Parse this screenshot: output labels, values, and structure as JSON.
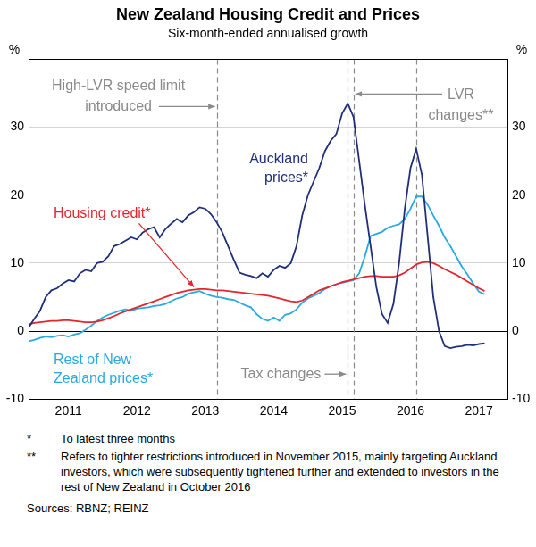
{
  "chart_data": {
    "type": "line",
    "title": "New Zealand Housing Credit and Prices",
    "subtitle": "Six-month-ended annualised growth",
    "ylabel": "%",
    "y2label": "%",
    "categories": [
      null,
      null,
      null,
      null,
      null,
      null,
      null,
      "2011",
      null,
      null,
      null,
      null,
      null,
      null,
      null,
      null,
      null,
      null,
      null,
      "2012",
      null,
      null,
      null,
      null,
      null,
      null,
      null,
      null,
      null,
      null,
      null,
      "2013",
      null,
      null,
      null,
      null,
      null,
      null,
      null,
      null,
      null,
      null,
      null,
      "2014",
      null,
      null,
      null,
      null,
      null,
      null,
      null,
      null,
      null,
      null,
      null,
      "2015",
      null,
      null,
      null,
      null,
      null,
      null,
      null,
      null,
      null,
      null,
      null,
      "2016",
      null,
      null,
      null,
      null,
      null,
      null,
      null,
      null,
      null,
      null,
      null,
      "2017",
      null,
      null,
      null,
      null,
      null
    ],
    "series": [
      {
        "name": "Auckland prices*",
        "color": "#1f2f7a",
        "values": [
          0.5,
          1.8,
          3,
          5,
          6,
          6.3,
          7,
          7.5,
          7.3,
          8.5,
          9,
          8.8,
          10,
          10.2,
          11,
          12.5,
          12.8,
          13.3,
          13.8,
          13.5,
          14.5,
          15,
          15.3,
          13.8,
          15,
          15.8,
          16.5,
          16,
          17,
          17.5,
          18.2,
          18,
          17.2,
          16,
          14.5,
          12.5,
          10.5,
          8.6,
          8.3,
          8.1,
          7.8,
          8.5,
          8,
          9,
          9.6,
          9.3,
          10,
          12.5,
          17,
          20,
          22,
          24,
          26.5,
          28,
          29,
          32,
          33.5,
          31.5,
          25,
          18.5,
          12.5,
          6.5,
          2.5,
          1.2,
          4,
          10,
          18,
          24,
          26.8,
          23,
          14,
          5,
          0,
          -2.2,
          -2.5,
          -2.3,
          -2.2,
          -2,
          -2.1,
          -1.9,
          -1.8,
          null,
          null,
          null,
          null
        ]
      },
      {
        "name": "Housing credit*",
        "color": "#e3262d",
        "values": [
          1.0,
          1.2,
          1.3,
          1.4,
          1.5,
          1.5,
          1.6,
          1.6,
          1.5,
          1.4,
          1.3,
          1.3,
          1.4,
          1.6,
          1.9,
          2.2,
          2.6,
          2.9,
          3.2,
          3.5,
          3.8,
          4.1,
          4.4,
          4.7,
          5.0,
          5.3,
          5.6,
          5.8,
          6.0,
          6.1,
          6.2,
          6.2,
          6.1,
          6.0,
          6.0,
          5.9,
          5.8,
          5.7,
          5.6,
          5.5,
          5.4,
          5.3,
          5.2,
          5.0,
          4.8,
          4.6,
          4.4,
          4.3,
          4.5,
          5.0,
          5.5,
          6.0,
          6.3,
          6.6,
          6.9,
          7.2,
          7.4,
          7.6,
          7.8,
          8.0,
          8.1,
          8.1,
          8.0,
          8.0,
          8.0,
          8.2,
          8.6,
          9.2,
          9.8,
          10.1,
          10.2,
          10.0,
          9.6,
          9.1,
          8.7,
          8.3,
          7.8,
          7.3,
          6.8,
          6.3,
          5.9,
          null,
          null,
          null,
          null
        ]
      },
      {
        "name": "Rest of New Zealand prices*",
        "color": "#29a9e1",
        "values": [
          -1.5,
          -1.3,
          -1.0,
          -0.8,
          -0.9,
          -0.7,
          -0.6,
          -0.8,
          -0.5,
          -0.3,
          0.2,
          0.8,
          1.5,
          2.0,
          2.4,
          2.7,
          3.0,
          3.2,
          3.0,
          3.3,
          3.4,
          3.5,
          3.7,
          3.8,
          4.0,
          4.4,
          4.8,
          5.0,
          5.5,
          5.7,
          5.9,
          5.5,
          5.2,
          5.0,
          4.9,
          4.7,
          4.6,
          4.2,
          3.8,
          3.5,
          2.5,
          1.8,
          1.5,
          2.0,
          1.5,
          2.4,
          2.6,
          3.2,
          4.2,
          4.8,
          5.2,
          5.6,
          6.2,
          6.6,
          6.9,
          7.1,
          7.3,
          7.5,
          8.5,
          11,
          14,
          14.3,
          14.6,
          15.2,
          15.5,
          15.7,
          16.5,
          18,
          19.8,
          19.8,
          18.6,
          17,
          15.5,
          13.8,
          12.5,
          11,
          9.5,
          8.3,
          7,
          5.8,
          5.4,
          null,
          null,
          null,
          null
        ]
      }
    ],
    "ylim": [
      -10,
      40
    ],
    "yticks": [
      -10,
      0,
      10,
      20,
      30
    ],
    "y2lim": [
      -10,
      40
    ],
    "y2ticks": [
      -10,
      0,
      10,
      20,
      30
    ],
    "grid": true,
    "annotations": [
      {
        "text": [
          "High-LVR speed limit",
          "introduced"
        ],
        "x": [
          33
        ]
      },
      {
        "text": [
          "LVR",
          "changes**"
        ],
        "x": [
          57,
          68
        ]
      },
      {
        "text": [
          "Tax changes"
        ],
        "x": [
          56
        ]
      }
    ],
    "notes": [
      {
        "mark": "*",
        "text": "To latest three months"
      },
      {
        "mark": "**",
        "text": "Refers to tighter restrictions introduced in November 2015, mainly targeting Auckland investors, which were subsequently tightened further and extended to investors in the rest of New Zealand in October 2016"
      }
    ],
    "source": "Sources: RBNZ; REINZ"
  }
}
